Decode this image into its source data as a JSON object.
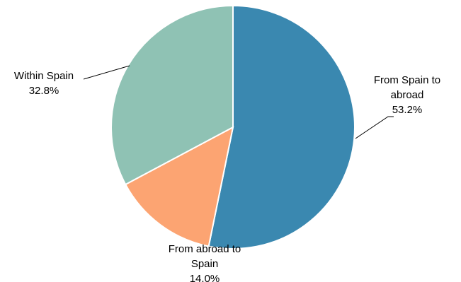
{
  "chart_data": {
    "type": "pie",
    "slices": [
      {
        "label_lines": [
          "From Spain to",
          "abroad"
        ],
        "value": 53.2,
        "value_label": "53.2%",
        "color": "#3a88b0"
      },
      {
        "label_lines": [
          "From abroad to",
          "Spain"
        ],
        "value": 14.0,
        "value_label": "14.0%",
        "color": "#fca472"
      },
      {
        "label_lines": [
          "Within Spain"
        ],
        "value": 32.8,
        "value_label": "32.8%",
        "color": "#8fc2b4"
      }
    ],
    "start_angle": "12 o'clock",
    "direction": "clockwise",
    "slice_border_color": "#ffffff",
    "legend": "none"
  }
}
